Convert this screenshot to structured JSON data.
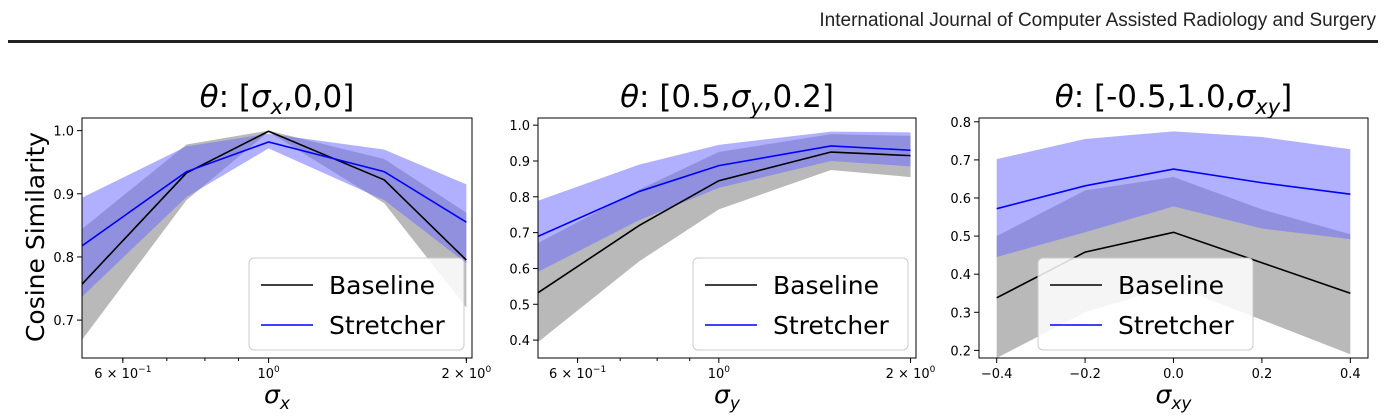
{
  "header": {
    "journal": "International Journal of Computer Assisted Radiology and Surgery"
  },
  "figure": {
    "ylabel": "Cosine Similarity"
  },
  "colors": {
    "baseline": "#000000",
    "stretcher": "#0000ff",
    "baseline_band": "#808080",
    "stretcher_band": "#7070ff"
  },
  "chart_data": [
    {
      "type": "line",
      "title_prefix": "θ: [",
      "title_var": "σ",
      "title_sub": "x",
      "title_suffix": ",0,0]",
      "xlabel_var": "σ",
      "xlabel_sub": "x",
      "xscale": "log",
      "xlim": [
        0.52,
        2.04
      ],
      "ylim": [
        0.64,
        1.02
      ],
      "yticks": [
        "0.7",
        "0.8",
        "0.9",
        "1.0"
      ],
      "xticks": [
        {
          "b": "6 × 10",
          "e": "−1"
        },
        {
          "b": "10",
          "e": "0"
        },
        {
          "b": "2 × 10",
          "e": "0"
        }
      ],
      "x": [
        0.5,
        0.75,
        1.0,
        1.5,
        2.0
      ],
      "series": [
        {
          "name": "Baseline",
          "values": [
            0.738,
            0.933,
            0.999,
            0.922,
            0.795
          ],
          "lower": [
            0.645,
            0.89,
            0.998,
            0.885,
            0.72
          ],
          "upper": [
            0.83,
            0.978,
            1.0,
            0.955,
            0.87
          ]
        },
        {
          "name": "Stretcher",
          "values": [
            0.805,
            0.935,
            0.982,
            0.935,
            0.855
          ],
          "lower": [
            0.72,
            0.895,
            0.972,
            0.89,
            0.79
          ],
          "upper": [
            0.885,
            0.975,
            0.995,
            0.97,
            0.915
          ]
        }
      ],
      "legend": "lower-right"
    },
    {
      "type": "line",
      "title_prefix": "θ: [0.5,",
      "title_var": "σ",
      "title_sub": "y",
      "title_suffix": ",0.2]",
      "xlabel_var": "σ",
      "xlabel_sub": "y",
      "xscale": "log",
      "xlim": [
        0.52,
        2.04
      ],
      "ylim": [
        0.35,
        1.02
      ],
      "yticks": [
        "0.4",
        "0.5",
        "0.6",
        "0.7",
        "0.8",
        "0.9",
        "1.0"
      ],
      "xticks": [
        {
          "b": "6 × 10",
          "e": "−1"
        },
        {
          "b": "10",
          "e": "0"
        },
        {
          "b": "2 × 10",
          "e": "0"
        }
      ],
      "x": [
        0.5,
        0.75,
        1.0,
        1.5,
        2.0
      ],
      "series": [
        {
          "name": "Baseline",
          "values": [
            0.512,
            0.72,
            0.845,
            0.925,
            0.915
          ],
          "lower": [
            0.37,
            0.62,
            0.765,
            0.875,
            0.855
          ],
          "upper": [
            0.655,
            0.82,
            0.925,
            0.975,
            0.97
          ]
        },
        {
          "name": "Stretcher",
          "values": [
            0.676,
            0.815,
            0.887,
            0.942,
            0.93
          ],
          "lower": [
            0.575,
            0.735,
            0.825,
            0.9,
            0.885
          ],
          "upper": [
            0.778,
            0.89,
            0.945,
            0.982,
            0.98
          ]
        }
      ],
      "legend": "lower-right"
    },
    {
      "type": "line",
      "title_prefix": "θ: [-0.5,1.0,",
      "title_var": "σ",
      "title_sub": "xy",
      "title_suffix": "]",
      "xlabel_var": "σ",
      "xlabel_sub": "xy",
      "xscale": "linear",
      "xlim": [
        -0.44,
        0.44
      ],
      "ylim": [
        0.18,
        0.81
      ],
      "yticks": [
        "0.2",
        "0.3",
        "0.4",
        "0.5",
        "0.6",
        "0.7",
        "0.8"
      ],
      "xticks": [
        {
          "b": "−0.4",
          "e": ""
        },
        {
          "b": "−0.2",
          "e": ""
        },
        {
          "b": "0.0",
          "e": ""
        },
        {
          "b": "0.2",
          "e": ""
        },
        {
          "b": "0.4",
          "e": ""
        }
      ],
      "x": [
        -0.4,
        -0.2,
        0.0,
        0.2,
        0.4
      ],
      "series": [
        {
          "name": "Baseline",
          "values": [
            0.338,
            0.458,
            0.51,
            0.43,
            0.35
          ],
          "lower": [
            0.18,
            0.3,
            0.37,
            0.28,
            0.19
          ],
          "upper": [
            0.5,
            0.62,
            0.655,
            0.57,
            0.505
          ]
        },
        {
          "name": "Stretcher",
          "values": [
            0.572,
            0.632,
            0.676,
            0.64,
            0.61
          ],
          "lower": [
            0.445,
            0.51,
            0.578,
            0.52,
            0.492
          ],
          "upper": [
            0.702,
            0.755,
            0.775,
            0.76,
            0.728
          ]
        }
      ],
      "legend": "lower-center"
    }
  ]
}
